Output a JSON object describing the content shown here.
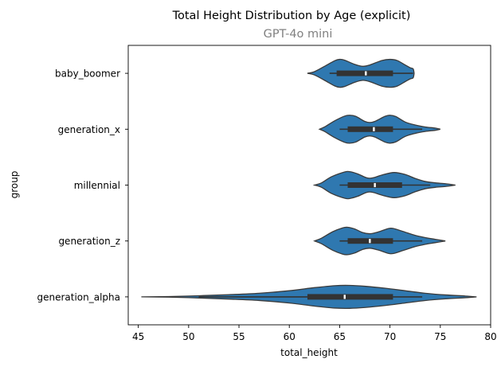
{
  "chart_data": {
    "type": "violin",
    "orientation": "horizontal",
    "title": "Total Height Distribution by Age (explicit)",
    "subtitle": "GPT-4o mini",
    "xlabel": "total_height",
    "ylabel": "group",
    "xlim": [
      44,
      80
    ],
    "xticks": [
      45,
      50,
      55,
      60,
      65,
      70,
      75,
      80
    ],
    "grid": false,
    "fill_color": "#2f78b0",
    "edge_color": "#3a3a3a",
    "box_color": "#333333",
    "median_color": "#ffffff",
    "categories": [
      "baby_boomer",
      "generation_x",
      "millennial",
      "generation_z",
      "generation_alpha"
    ],
    "series": [
      {
        "group": "baby_boomer",
        "density": [
          [
            61.8,
            0.0
          ],
          [
            62.5,
            0.06
          ],
          [
            63.5,
            0.25
          ],
          [
            64.5,
            0.45
          ],
          [
            65.0,
            0.5
          ],
          [
            65.5,
            0.47
          ],
          [
            66.5,
            0.32
          ],
          [
            67.3,
            0.25
          ],
          [
            68.0,
            0.3
          ],
          [
            69.2,
            0.46
          ],
          [
            70.0,
            0.5
          ],
          [
            70.7,
            0.46
          ],
          [
            71.5,
            0.3
          ],
          [
            72.0,
            0.2
          ],
          [
            72.3,
            0.16
          ],
          [
            72.4,
            0.0
          ]
        ],
        "whisker_low": 64.0,
        "q1": 64.7,
        "median": 67.6,
        "q3": 70.3,
        "whisker_high": 72.3
      },
      {
        "group": "generation_x",
        "density": [
          [
            63.0,
            0.0
          ],
          [
            63.5,
            0.08
          ],
          [
            64.5,
            0.3
          ],
          [
            65.5,
            0.47
          ],
          [
            66.0,
            0.5
          ],
          [
            66.6,
            0.46
          ],
          [
            67.5,
            0.28
          ],
          [
            68.0,
            0.24
          ],
          [
            68.5,
            0.28
          ],
          [
            69.5,
            0.46
          ],
          [
            70.0,
            0.5
          ],
          [
            70.6,
            0.45
          ],
          [
            71.5,
            0.26
          ],
          [
            72.5,
            0.15
          ],
          [
            73.5,
            0.08
          ],
          [
            74.5,
            0.04
          ],
          [
            75.0,
            0.0
          ]
        ],
        "whisker_low": 65.0,
        "q1": 65.8,
        "median": 68.4,
        "q3": 70.3,
        "whisker_high": 73.2
      },
      {
        "group": "millennial",
        "density": [
          [
            62.5,
            0.0
          ],
          [
            63.2,
            0.08
          ],
          [
            64.2,
            0.3
          ],
          [
            65.5,
            0.47
          ],
          [
            66.0,
            0.48
          ],
          [
            66.8,
            0.4
          ],
          [
            67.7,
            0.26
          ],
          [
            68.3,
            0.26
          ],
          [
            69.2,
            0.36
          ],
          [
            70.4,
            0.45
          ],
          [
            71.5,
            0.38
          ],
          [
            72.5,
            0.24
          ],
          [
            73.5,
            0.13
          ],
          [
            74.5,
            0.08
          ],
          [
            75.5,
            0.05
          ],
          [
            76.5,
            0.0
          ]
        ],
        "whisker_low": 65.0,
        "q1": 65.8,
        "median": 68.5,
        "q3": 71.2,
        "whisker_high": 74.0
      },
      {
        "group": "generation_z",
        "density": [
          [
            62.5,
            0.0
          ],
          [
            63.2,
            0.1
          ],
          [
            64.3,
            0.33
          ],
          [
            65.3,
            0.47
          ],
          [
            65.8,
            0.49
          ],
          [
            66.5,
            0.43
          ],
          [
            67.3,
            0.3
          ],
          [
            68.0,
            0.26
          ],
          [
            68.8,
            0.32
          ],
          [
            69.8,
            0.44
          ],
          [
            70.3,
            0.45
          ],
          [
            71.3,
            0.34
          ],
          [
            72.5,
            0.2
          ],
          [
            73.5,
            0.12
          ],
          [
            74.5,
            0.06
          ],
          [
            75.5,
            0.0
          ]
        ],
        "whisker_low": 65.0,
        "q1": 65.8,
        "median": 68.0,
        "q3": 70.3,
        "whisker_high": 73.2
      },
      {
        "group": "generation_alpha",
        "density": [
          [
            45.3,
            0.0
          ],
          [
            48.0,
            0.01
          ],
          [
            51.0,
            0.04
          ],
          [
            54.0,
            0.08
          ],
          [
            57.0,
            0.13
          ],
          [
            60.0,
            0.22
          ],
          [
            62.5,
            0.33
          ],
          [
            64.5,
            0.4
          ],
          [
            66.0,
            0.41
          ],
          [
            67.5,
            0.38
          ],
          [
            69.5,
            0.31
          ],
          [
            71.5,
            0.22
          ],
          [
            73.5,
            0.13
          ],
          [
            75.5,
            0.07
          ],
          [
            77.5,
            0.03
          ],
          [
            78.6,
            0.0
          ]
        ],
        "whisker_low": 51.0,
        "q1": 61.8,
        "median": 65.5,
        "q3": 70.3,
        "whisker_high": 73.2
      }
    ]
  }
}
